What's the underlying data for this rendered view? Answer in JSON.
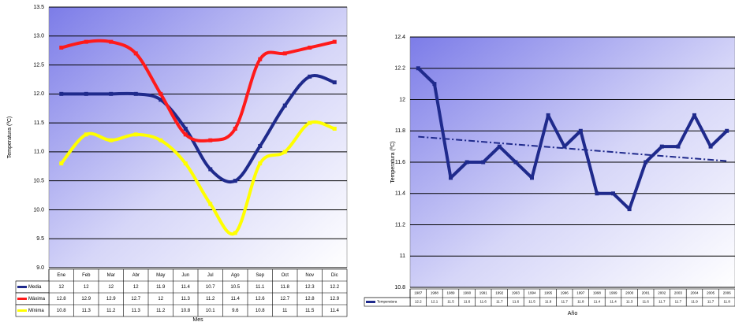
{
  "chart_data": [
    {
      "type": "line",
      "smooth": true,
      "y_label": "Temperatura (ºC)",
      "x_label": "Mes",
      "categories": [
        "Ene",
        "Feb",
        "Mar",
        "Abr",
        "May",
        "Jun",
        "Jul",
        "Ago",
        "Sep",
        "Oct",
        "Nov",
        "Dic"
      ],
      "series": [
        {
          "name": "Media",
          "color": "#1f2a8c",
          "values": [
            12.0,
            12.0,
            12.0,
            12.0,
            11.9,
            11.4,
            10.7,
            10.5,
            11.1,
            11.8,
            12.3,
            12.2
          ]
        },
        {
          "name": "Máxima",
          "color": "#ff1a1a",
          "values": [
            12.8,
            12.9,
            12.9,
            12.7,
            12.0,
            11.3,
            11.2,
            11.4,
            12.6,
            12.7,
            12.8,
            12.9
          ]
        },
        {
          "name": "Mínima",
          "color": "#ffff00",
          "values": [
            10.8,
            11.3,
            11.2,
            11.3,
            11.2,
            10.8,
            10.1,
            9.6,
            10.8,
            11.0,
            11.5,
            11.4
          ]
        }
      ],
      "ylim": [
        9,
        13.5
      ],
      "yticks": [
        {
          "value": 9,
          "label": "9.0"
        },
        9.5,
        {
          "value": 10,
          "label": "10.0"
        },
        10.5,
        {
          "value": 11,
          "label": "11.0"
        },
        11.5,
        {
          "value": 12,
          "label": "12.0"
        },
        12.5,
        {
          "value": 13,
          "label": "13.0"
        },
        13.5
      ],
      "grid": true,
      "data_table": true
    },
    {
      "type": "line",
      "smooth": false,
      "trendline": true,
      "y_label": "Temperatura (ºC)",
      "x_label": "Año",
      "categories": [
        "1987",
        "1988",
        "1989",
        "1990",
        "1991",
        "1992",
        "1993",
        "1994",
        "1995",
        "1996",
        "1997",
        "1998",
        "1999",
        "2000",
        "2001",
        "2002",
        "2003",
        "2004",
        "2005",
        "2006"
      ],
      "series": [
        {
          "name": "Temperatura",
          "color": "#1f2a8c",
          "values": [
            12.2,
            12.1,
            11.5,
            11.6,
            11.6,
            11.7,
            11.6,
            11.5,
            11.9,
            11.7,
            11.8,
            11.4,
            11.4,
            11.3,
            11.6,
            11.7,
            11.7,
            11.9,
            11.7,
            11.8
          ]
        }
      ],
      "ylim": [
        10.8,
        12.4
      ],
      "yticks": [
        10.8,
        {
          "value": 11,
          "label": "11"
        },
        11.2,
        11.4,
        11.6,
        11.8,
        {
          "value": 12,
          "label": "12"
        },
        12.2,
        12.4
      ],
      "grid": true,
      "data_table": true
    }
  ]
}
